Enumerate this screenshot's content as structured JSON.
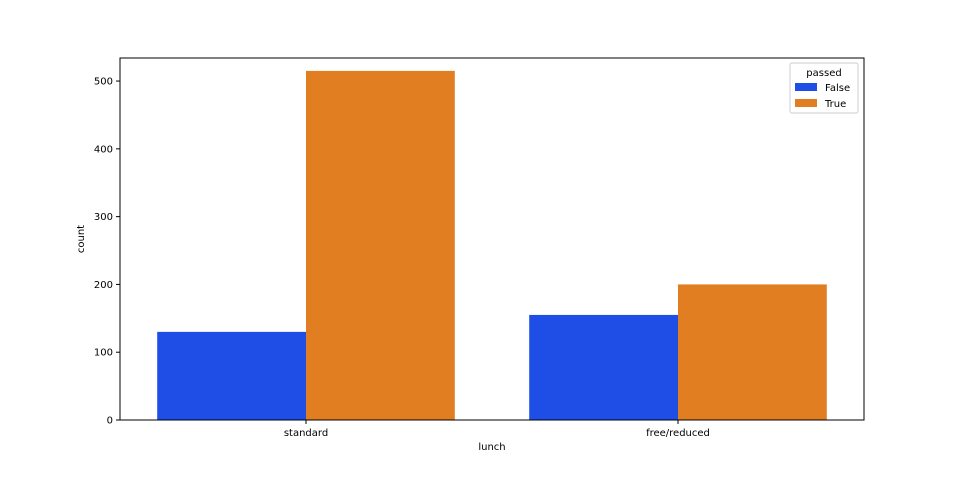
{
  "chart_data": {
    "type": "bar",
    "title": "",
    "xlabel": "lunch",
    "ylabel": "count",
    "categories": [
      "standard",
      "free/reduced"
    ],
    "series": [
      {
        "name": "False",
        "values": [
          130,
          155
        ],
        "color": "#1f4ee6"
      },
      {
        "name": "True",
        "values": [
          515,
          200
        ],
        "color": "#e07e21"
      }
    ],
    "ylim": [
      0,
      534
    ],
    "yticks": [
      "0",
      "100",
      "200",
      "300",
      "400",
      "500"
    ],
    "legend": {
      "title": "passed",
      "placement": "top-right"
    },
    "grid": false
  }
}
